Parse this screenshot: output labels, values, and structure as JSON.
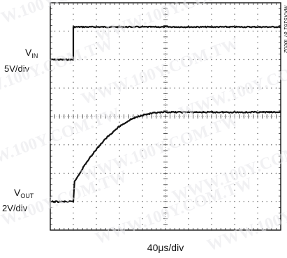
{
  "chart_data": {
    "type": "line",
    "title": "",
    "xlabel": "40μs/div",
    "x_divisions": 10,
    "y_divisions": 8,
    "grid": true,
    "figure_id": "MAX5161 87 toc02",
    "series": [
      {
        "name": "VIN",
        "label_main": "V",
        "label_sub": "IN",
        "scale": "5V/div",
        "points": [
          {
            "x": 0.0,
            "y": 0.0
          },
          {
            "x": 1.0,
            "y": 0.0
          },
          {
            "x": 1.0,
            "y": 1.15
          },
          {
            "x": 10.0,
            "y": 1.15
          }
        ]
      },
      {
        "name": "VOUT",
        "label_main": "V",
        "label_sub": "OUT",
        "scale": "2V/div",
        "points": [
          {
            "x": 0.0,
            "y": 0.0
          },
          {
            "x": 1.0,
            "y": 0.0
          },
          {
            "x": 1.05,
            "y": 0.7
          },
          {
            "x": 1.5,
            "y": 1.3
          },
          {
            "x": 2.0,
            "y": 1.85
          },
          {
            "x": 2.5,
            "y": 2.3
          },
          {
            "x": 3.0,
            "y": 2.65
          },
          {
            "x": 3.5,
            "y": 2.9
          },
          {
            "x": 4.0,
            "y": 3.05
          },
          {
            "x": 4.5,
            "y": 3.12
          },
          {
            "x": 5.0,
            "y": 3.15
          },
          {
            "x": 10.0,
            "y": 3.15
          }
        ]
      }
    ]
  },
  "watermark_text": "WWW.100Y.COM.TW"
}
